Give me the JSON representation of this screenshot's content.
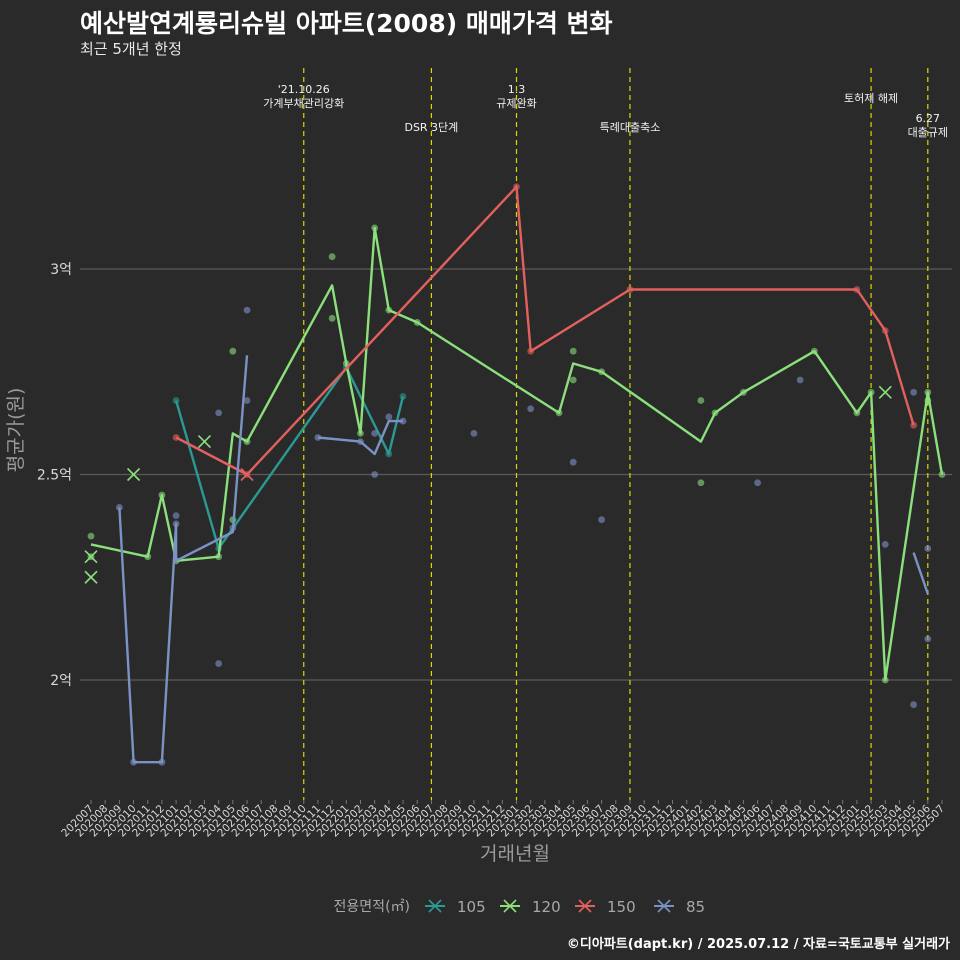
{
  "header": {
    "title": "예산발연계룡리슈빌 아파트(2008) 매매가격 변화",
    "subtitle": "최근 5개년 한정",
    "caption": "©디아파트(dapt.kr) / 2025.07.12 / 자료=국토교통부 실거래가"
  },
  "chart_data": {
    "type": "line",
    "xlabel": "거래년월",
    "ylabel": "평균가(원)",
    "x": [
      "202007",
      "202008",
      "202009",
      "202010",
      "202011",
      "202012",
      "202101",
      "202102",
      "202103",
      "202104",
      "202105",
      "202106",
      "202107",
      "202108",
      "202109",
      "202110",
      "202111",
      "202112",
      "202201",
      "202202",
      "202203",
      "202204",
      "202205",
      "202206",
      "202207",
      "202208",
      "202209",
      "202210",
      "202211",
      "202212",
      "202301",
      "202302",
      "202303",
      "202304",
      "202305",
      "202306",
      "202307",
      "202308",
      "202309",
      "202310",
      "202311",
      "202312",
      "202401",
      "202402",
      "202403",
      "202404",
      "202405",
      "202406",
      "202407",
      "202408",
      "202409",
      "202410",
      "202411",
      "202412",
      "202501",
      "202502",
      "202503",
      "202504",
      "202505",
      "202506",
      "202507"
    ],
    "ylim": [
      1.75,
      3.3
    ],
    "y_ticks": [
      {
        "value": 2.0,
        "label": "2억"
      },
      {
        "value": 2.5,
        "label": "2.5억"
      },
      {
        "value": 3.0,
        "label": "3억"
      }
    ],
    "grid": true,
    "legend": {
      "title": "전용면적(㎡)",
      "position": "bottom",
      "items": [
        {
          "name": "105",
          "color": "#2a9a93"
        },
        {
          "name": "120",
          "color": "#8be07c"
        },
        {
          "name": "150",
          "color": "#e2605d"
        },
        {
          "name": "85",
          "color": "#7b93c4"
        }
      ]
    },
    "series": [
      {
        "name": "105",
        "color": "#2a9a93",
        "line": [
          [
            "202101",
            2.68
          ],
          [
            "202104",
            2.32
          ],
          [
            "202201",
            2.76
          ],
          [
            "202204",
            2.55
          ],
          [
            "202205",
            2.69
          ]
        ],
        "points": [
          [
            "202101",
            2.68
          ],
          [
            "202104",
            2.32
          ],
          [
            "202201",
            2.76
          ],
          [
            "202204",
            2.55
          ],
          [
            "202205",
            2.69
          ]
        ]
      },
      {
        "name": "120",
        "color": "#8be07c",
        "line": [
          [
            "202007",
            2.33
          ],
          [
            "202011",
            2.3
          ],
          [
            "202012",
            2.45
          ],
          [
            "202101",
            2.29
          ],
          [
            "202104",
            2.3
          ],
          [
            "202105",
            2.6
          ],
          [
            "202106",
            2.58
          ],
          [
            "202112",
            2.96
          ],
          [
            "202201",
            2.77
          ],
          [
            "202202",
            2.6
          ],
          [
            "202203",
            3.1
          ],
          [
            "202204",
            2.9
          ],
          [
            "202206",
            2.87
          ],
          [
            "202304",
            2.65
          ],
          [
            "202305",
            2.77
          ],
          [
            "202307",
            2.75
          ],
          [
            "202402",
            2.58
          ],
          [
            "202403",
            2.65
          ],
          [
            "202405",
            2.7
          ],
          [
            "202410",
            2.8
          ],
          [
            "202501",
            2.65
          ],
          [
            "202502",
            2.7
          ],
          [
            "202503",
            2.0
          ],
          [
            "202506",
            2.7
          ],
          [
            "202507",
            2.5
          ]
        ],
        "points": [
          [
            "202007",
            2.35
          ],
          [
            "202007",
            2.3
          ],
          [
            "202011",
            2.3
          ],
          [
            "202012",
            2.45
          ],
          [
            "202101",
            2.29
          ],
          [
            "202104",
            2.3
          ],
          [
            "202105",
            2.8
          ],
          [
            "202105",
            2.39
          ],
          [
            "202106",
            2.58
          ],
          [
            "202112",
            3.03
          ],
          [
            "202112",
            2.88
          ],
          [
            "202201",
            2.77
          ],
          [
            "202202",
            2.6
          ],
          [
            "202203",
            3.1
          ],
          [
            "202204",
            2.9
          ],
          [
            "202206",
            2.87
          ],
          [
            "202304",
            2.65
          ],
          [
            "202305",
            2.8
          ],
          [
            "202305",
            2.73
          ],
          [
            "202307",
            2.75
          ],
          [
            "202402",
            2.68
          ],
          [
            "202402",
            2.48
          ],
          [
            "202403",
            2.65
          ],
          [
            "202405",
            2.7
          ],
          [
            "202410",
            2.8
          ],
          [
            "202501",
            2.65
          ],
          [
            "202502",
            2.7
          ],
          [
            "202503",
            2.0
          ],
          [
            "202506",
            2.7
          ],
          [
            "202506",
            2.68
          ],
          [
            "202507",
            2.5
          ]
        ],
        "cancelled": [
          [
            "202007",
            2.3
          ],
          [
            "202007",
            2.25
          ],
          [
            "202010",
            2.5
          ],
          [
            "202103",
            2.58
          ],
          [
            "202503",
            2.7
          ]
        ]
      },
      {
        "name": "150",
        "color": "#e2605d",
        "line": [
          [
            "202101",
            2.59
          ],
          [
            "202106",
            2.5
          ],
          [
            "202301",
            3.2
          ],
          [
            "202302",
            2.8
          ],
          [
            "202309",
            2.95
          ],
          [
            "202501",
            2.95
          ],
          [
            "202503",
            2.85
          ],
          [
            "202505",
            2.62
          ]
        ],
        "points": [
          [
            "202101",
            2.59
          ],
          [
            "202106",
            2.5
          ],
          [
            "202301",
            3.2
          ],
          [
            "202302",
            2.8
          ],
          [
            "202309",
            2.95
          ],
          [
            "202501",
            2.95
          ],
          [
            "202503",
            2.85
          ],
          [
            "202505",
            2.62
          ]
        ],
        "cancelled": [
          [
            "202106",
            2.5
          ]
        ]
      },
      {
        "name": "85",
        "color": "#7b93c4",
        "line": [
          [
            "202009",
            2.42
          ],
          [
            "202010",
            1.8
          ],
          [
            "202012",
            1.8
          ],
          [
            "202101",
            2.38
          ],
          [
            "202101",
            2.29
          ],
          [
            "202105",
            2.36
          ],
          [
            "202106",
            2.79
          ],
          [
            "null",
            0
          ],
          [
            "202111",
            2.59
          ],
          [
            "202202",
            2.58
          ],
          [
            "202203",
            2.55
          ],
          [
            "202204",
            2.63
          ],
          [
            "202205",
            2.63
          ],
          [
            "null",
            0
          ],
          [
            "202505",
            2.31
          ],
          [
            "202506",
            2.21
          ]
        ],
        "points": [
          [
            "202009",
            2.42
          ],
          [
            "202010",
            1.8
          ],
          [
            "202012",
            1.8
          ],
          [
            "202101",
            2.4
          ],
          [
            "202101",
            2.38
          ],
          [
            "202104",
            2.65
          ],
          [
            "202104",
            2.04
          ],
          [
            "202105",
            2.37
          ],
          [
            "202106",
            2.9
          ],
          [
            "202106",
            2.68
          ],
          [
            "202111",
            2.59
          ],
          [
            "202202",
            2.58
          ],
          [
            "202203",
            2.6
          ],
          [
            "202203",
            2.5
          ],
          [
            "202204",
            2.64
          ],
          [
            "202205",
            2.63
          ],
          [
            "202210",
            2.6
          ],
          [
            "202302",
            2.66
          ],
          [
            "202305",
            2.53
          ],
          [
            "202307",
            2.39
          ],
          [
            "202406",
            2.48
          ],
          [
            "202409",
            2.73
          ],
          [
            "202503",
            2.33
          ],
          [
            "202505",
            2.7
          ],
          [
            "202505",
            1.94
          ],
          [
            "202506",
            2.32
          ],
          [
            "202506",
            2.1
          ]
        ]
      }
    ],
    "events": [
      {
        "x": "202110",
        "lines": [
          "'21.10.26",
          "가계부채관리강화"
        ],
        "row": 0
      },
      {
        "x": "202207",
        "lines": [
          "DSR 3단계"
        ],
        "row": 1
      },
      {
        "x": "202301",
        "lines": [
          "1.3",
          "규제완화"
        ],
        "row": 0
      },
      {
        "x": "202309",
        "lines": [
          "특례대출축소"
        ],
        "row": 1
      },
      {
        "x": "202502",
        "lines": [
          "토허제 해제"
        ],
        "row": 0
      },
      {
        "x": "202506",
        "lines": [
          "6.27",
          "대출규제"
        ],
        "row": 2
      }
    ]
  }
}
